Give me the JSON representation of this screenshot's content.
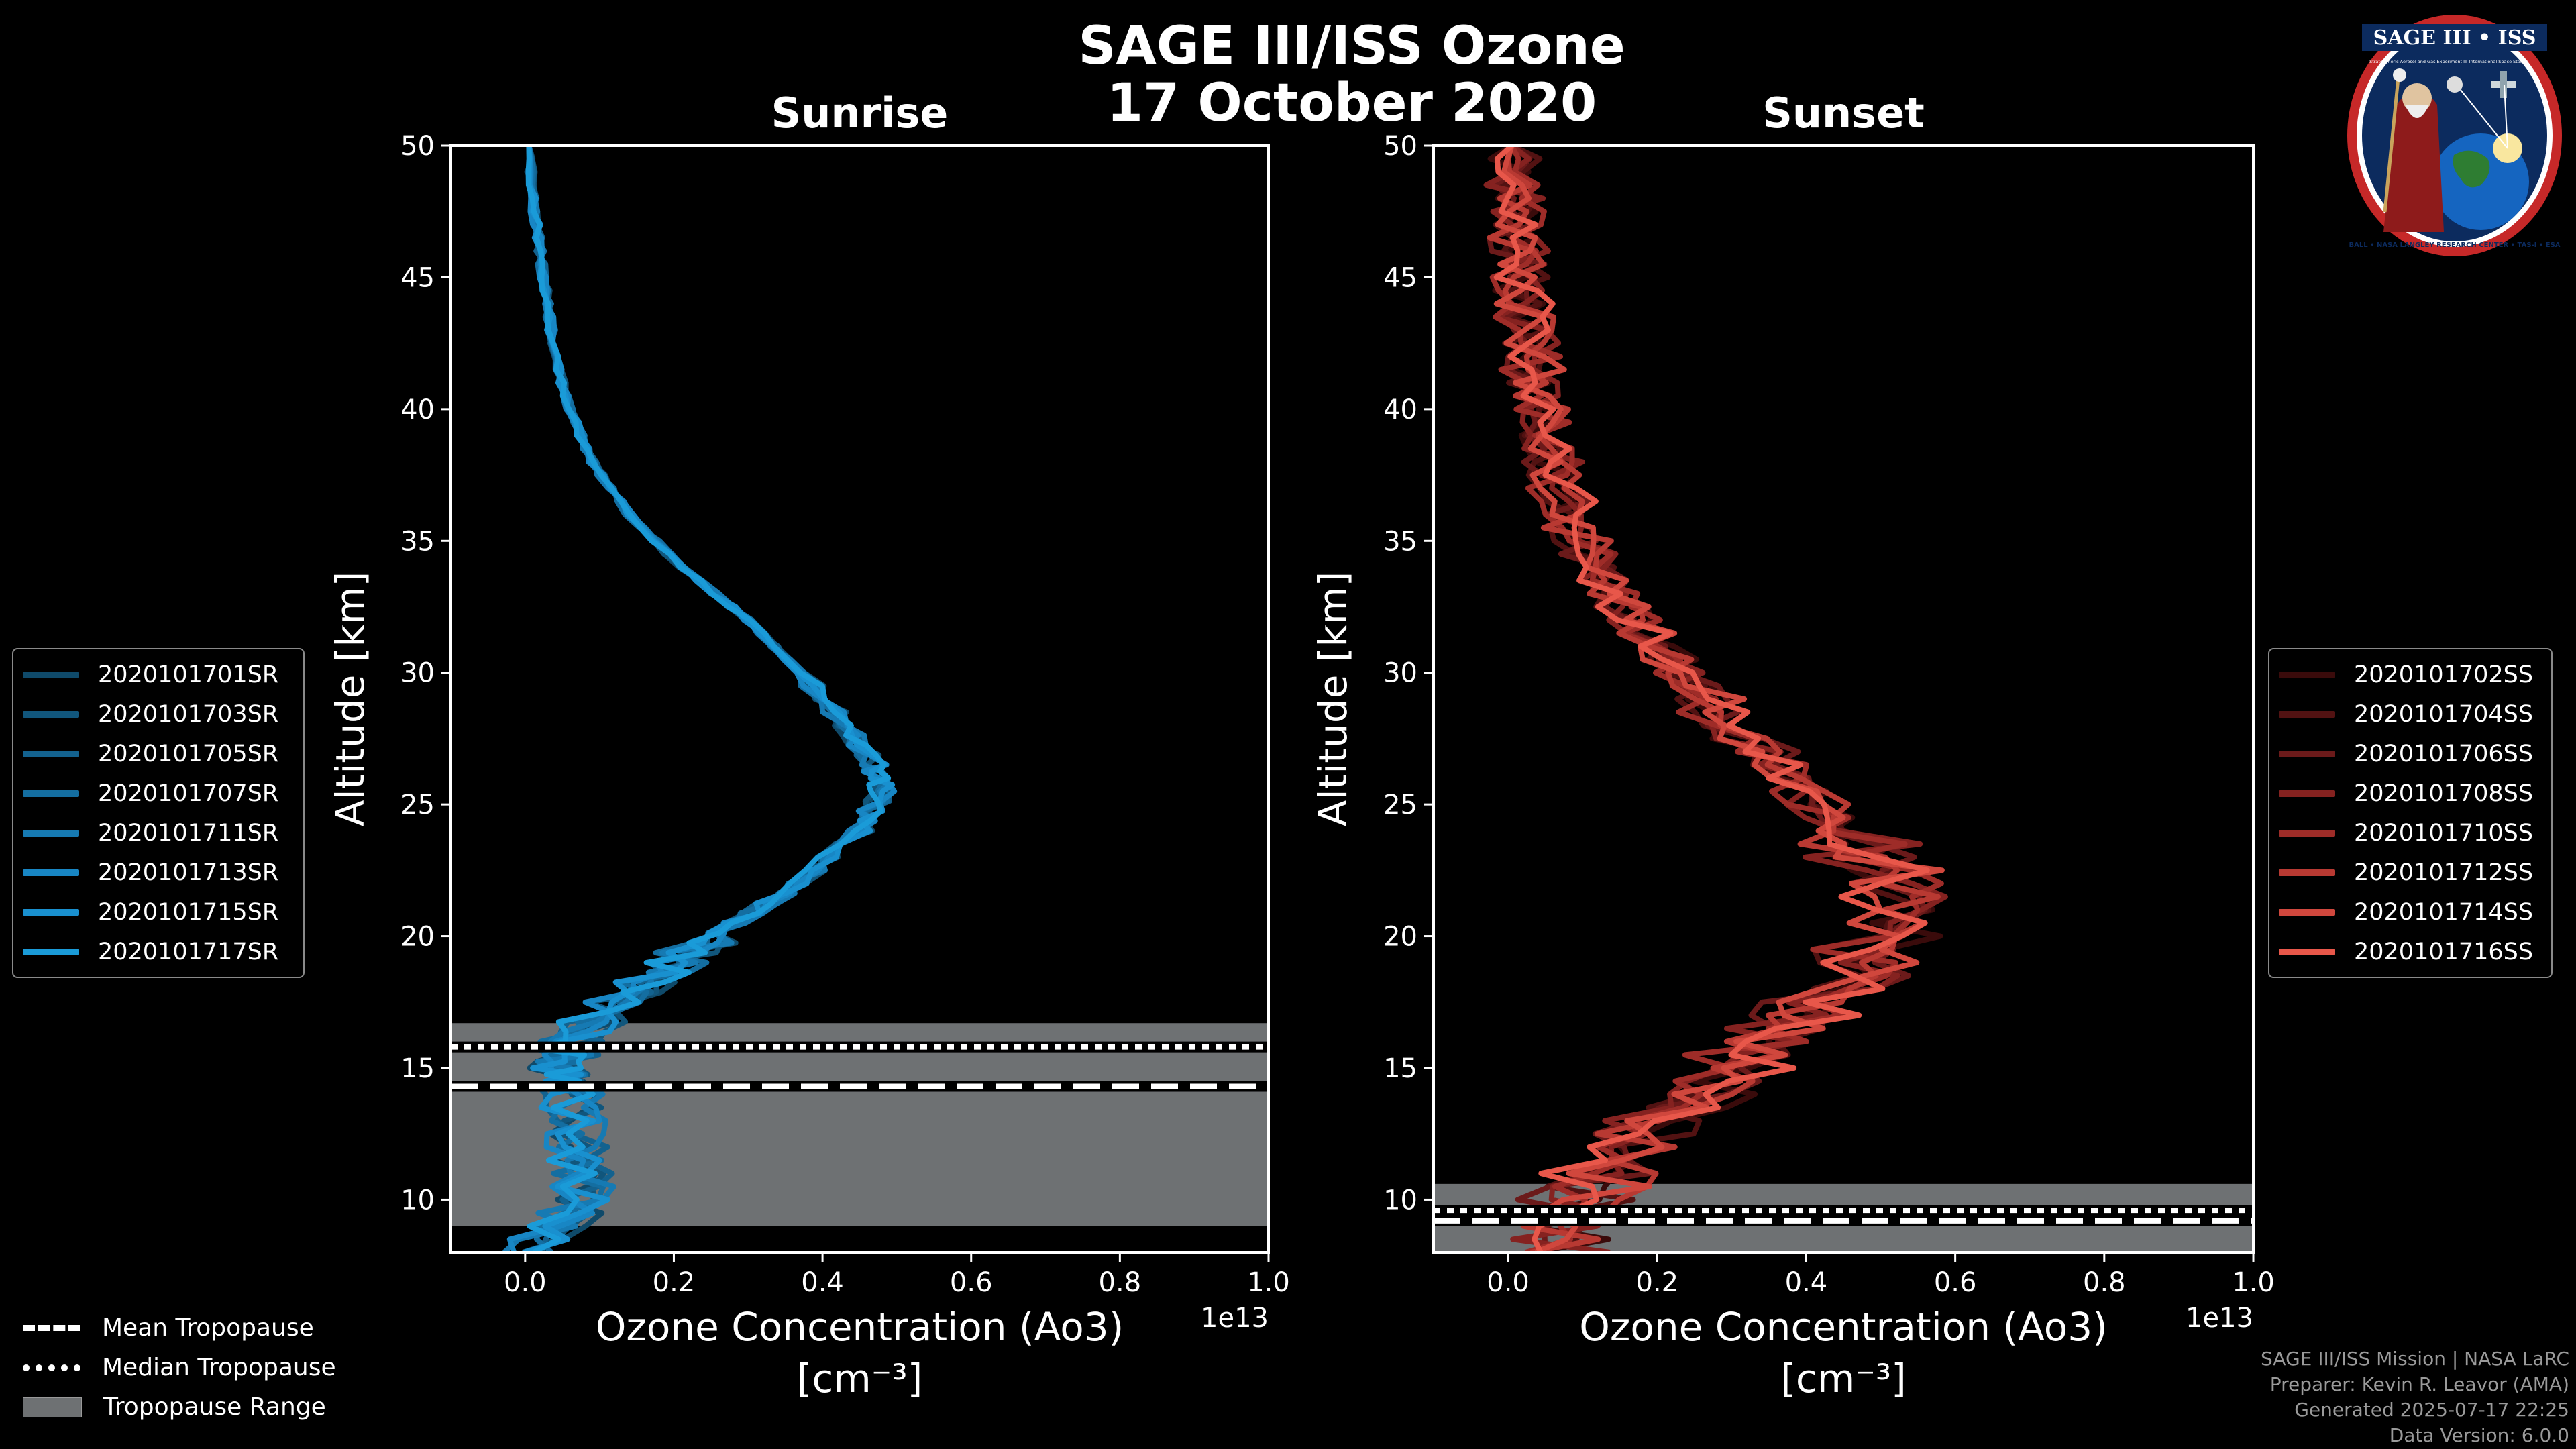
{
  "header": {
    "title_line1": "SAGE III/ISS Ozone",
    "title_line2": "17 October 2020"
  },
  "colors": {
    "background": "#000000",
    "sunrise": "#1a9bd8",
    "sunset": "#e8574a",
    "tropo_range": "#6e7173"
  },
  "chart_data": [
    {
      "type": "line",
      "title": "Sunrise",
      "xlabel_line1": "Ozone Concentration (Ao3)",
      "xlabel_line2": "[cm⁻³]",
      "ylabel": "Altitude [km]",
      "x_offset_label": "1e13",
      "xlim": [
        -0.1,
        1.0
      ],
      "ylim": [
        8,
        50
      ],
      "xticks": [
        0.0,
        0.2,
        0.4,
        0.6,
        0.8,
        1.0
      ],
      "xtick_labels": [
        "0.0",
        "0.2",
        "0.4",
        "0.6",
        "0.8",
        "1.0"
      ],
      "yticks": [
        10,
        15,
        20,
        25,
        30,
        35,
        40,
        45,
        50
      ],
      "ytick_labels": [
        "10",
        "15",
        "20",
        "25",
        "30",
        "35",
        "40",
        "45",
        "50"
      ],
      "tropopause": {
        "mean_km": 14.3,
        "median_km": 15.8,
        "range_km": [
          9.0,
          16.7
        ]
      },
      "legend_position": "left",
      "series": [
        {
          "name": "2020101701SR",
          "color": "#0f4a6a",
          "seed": 1
        },
        {
          "name": "2020101703SR",
          "color": "#11567c",
          "seed": 3
        },
        {
          "name": "2020101705SR",
          "color": "#13628f",
          "seed": 5
        },
        {
          "name": "2020101707SR",
          "color": "#146ea1",
          "seed": 7
        },
        {
          "name": "2020101711SR",
          "color": "#167ab3",
          "seed": 11
        },
        {
          "name": "2020101713SR",
          "color": "#1886c4",
          "seed": 13
        },
        {
          "name": "2020101715SR",
          "color": "#1990cf",
          "seed": 15
        },
        {
          "name": "2020101717SR",
          "color": "#1a9bd8",
          "seed": 17
        }
      ],
      "profile": [
        [
          0.0,
          8
        ],
        [
          0.08,
          10
        ],
        [
          0.07,
          12
        ],
        [
          0.06,
          14
        ],
        [
          0.05,
          15
        ],
        [
          0.06,
          16
        ],
        [
          0.12,
          17.5
        ],
        [
          0.2,
          19
        ],
        [
          0.28,
          20.5
        ],
        [
          0.37,
          22
        ],
        [
          0.45,
          24
        ],
        [
          0.48,
          25.5
        ],
        [
          0.47,
          26.5
        ],
        [
          0.43,
          28
        ],
        [
          0.37,
          30
        ],
        [
          0.3,
          32
        ],
        [
          0.21,
          34
        ],
        [
          0.14,
          36
        ],
        [
          0.09,
          38
        ],
        [
          0.06,
          40
        ],
        [
          0.04,
          42
        ],
        [
          0.03,
          44
        ],
        [
          0.02,
          46
        ],
        [
          0.01,
          48
        ],
        [
          0.005,
          50
        ]
      ]
    },
    {
      "type": "line",
      "title": "Sunset",
      "xlabel_line1": "Ozone Concentration (Ao3)",
      "xlabel_line2": "[cm⁻³]",
      "ylabel": "Altitude [km]",
      "x_offset_label": "1e13",
      "xlim": [
        -0.1,
        1.0
      ],
      "ylim": [
        8,
        50
      ],
      "xticks": [
        0.0,
        0.2,
        0.4,
        0.6,
        0.8,
        1.0
      ],
      "xtick_labels": [
        "0.0",
        "0.2",
        "0.4",
        "0.6",
        "0.8",
        "1.0"
      ],
      "yticks": [
        10,
        15,
        20,
        25,
        30,
        35,
        40,
        45,
        50
      ],
      "ytick_labels": [
        "10",
        "15",
        "20",
        "25",
        "30",
        "35",
        "40",
        "45",
        "50"
      ],
      "tropopause": {
        "mean_km": 9.2,
        "median_km": 9.6,
        "range_km": [
          8.0,
          10.6
        ]
      },
      "legend_position": "right",
      "series": [
        {
          "name": "2020101702SS",
          "color": "#3a0b0b",
          "seed": 2
        },
        {
          "name": "2020101704SS",
          "color": "#521212",
          "seed": 4
        },
        {
          "name": "2020101706SS",
          "color": "#6b1a1a",
          "seed": 6
        },
        {
          "name": "2020101708SS",
          "color": "#852220",
          "seed": 8
        },
        {
          "name": "2020101710SS",
          "color": "#9e2c28",
          "seed": 10
        },
        {
          "name": "2020101712SS",
          "color": "#b83932",
          "seed": 12
        },
        {
          "name": "2020101714SS",
          "color": "#d0473d",
          "seed": 14
        },
        {
          "name": "2020101716SS",
          "color": "#e8574a",
          "seed": 16
        }
      ],
      "profile": [
        [
          0.05,
          8
        ],
        [
          0.1,
          10
        ],
        [
          0.15,
          12
        ],
        [
          0.25,
          14
        ],
        [
          0.35,
          16
        ],
        [
          0.45,
          18
        ],
        [
          0.52,
          20
        ],
        [
          0.52,
          22
        ],
        [
          0.45,
          24
        ],
        [
          0.38,
          26
        ],
        [
          0.3,
          28
        ],
        [
          0.23,
          30
        ],
        [
          0.17,
          32
        ],
        [
          0.12,
          34
        ],
        [
          0.08,
          36
        ],
        [
          0.06,
          38
        ],
        [
          0.04,
          40
        ],
        [
          0.03,
          42
        ],
        [
          0.02,
          44
        ],
        [
          0.015,
          46
        ],
        [
          0.01,
          48
        ],
        [
          0.005,
          50
        ]
      ]
    }
  ],
  "bottom_legend": {
    "mean": "Mean Tropopause",
    "median": "Median Tropopause",
    "range": "Tropopause Range"
  },
  "credits": {
    "line1": "SAGE III/ISS Mission | NASA LaRC",
    "line2": "Preparer: Kevin R. Leavor (AMA)",
    "line3": "Generated 2025-07-17 22:25",
    "line4": "Data Version: 6.0.0"
  },
  "badge": {
    "title": "SAGE III • ISS",
    "subtitle": "Stratospheric Aerosol and Gas Experiment III",
    "subtitle2": "International Space Station",
    "ring_text": "BALL • NASA LANGLEY RESEARCH CENTER • TAS-I • ESA"
  }
}
